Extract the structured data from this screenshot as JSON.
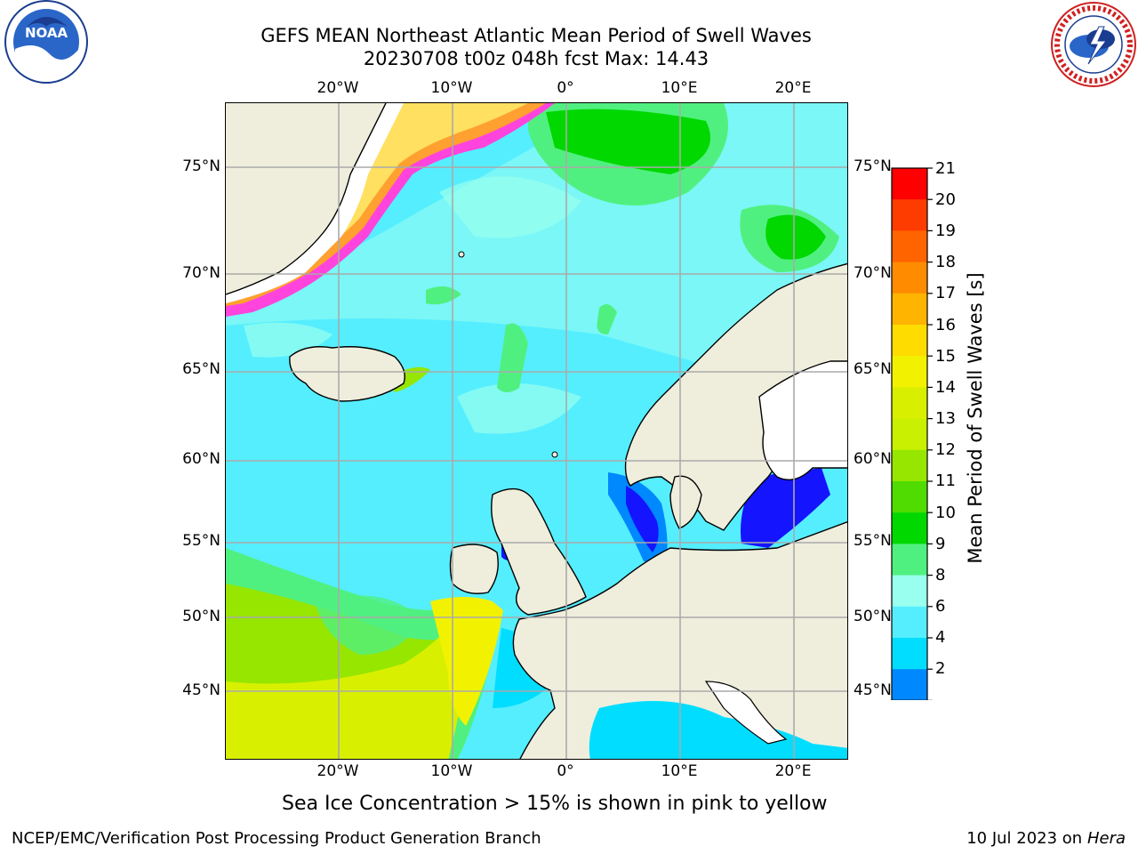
{
  "title": {
    "line1": "GEFS MEAN Northeast Atlantic Mean Period of Swell Waves",
    "line2": "20230708 t00z 048h fcst   Max: 14.43"
  },
  "logos": {
    "left": "noaa-logo",
    "right": "national-weather-service-logo"
  },
  "map": {
    "lat_ticks": [
      "75°N",
      "70°N",
      "65°N",
      "60°N",
      "55°N",
      "50°N",
      "45°N"
    ],
    "lon_ticks": [
      "20°W",
      "10°W",
      "0°",
      "10°E",
      "20°E"
    ],
    "colors": {
      "land": "#efeedd",
      "ice_pink": "#ff44dd",
      "ice_orange": "#ffa030",
      "ice_yellow": "#ffe060",
      "grid": "#aaaaaa",
      "coast": "#000000"
    }
  },
  "colorbar": {
    "title": "Mean Period of Swell Waves [s]",
    "labels": [
      "21",
      "20",
      "19",
      "18",
      "17",
      "16",
      "15",
      "14",
      "13",
      "12",
      "11",
      "10",
      "9",
      "8",
      "6",
      "4",
      "2"
    ],
    "colors": [
      "#ff0000",
      "#ff3c00",
      "#ff6400",
      "#ff8c00",
      "#ffb400",
      "#ffdc00",
      "#f2f200",
      "#d8f000",
      "#c8f000",
      "#96e600",
      "#50dc00",
      "#00d800",
      "#50f080",
      "#99ffee",
      "#55eeff",
      "#00ddff",
      "#0088ff",
      "#1414ff"
    ]
  },
  "caption": "Sea Ice Concentration > 15% is shown in pink to yellow",
  "footer": {
    "left": "NCEP/EMC/Verification Post Processing Product Generation Branch",
    "right_prefix": "10 Jul 2023 on ",
    "right_host": "Hera"
  }
}
